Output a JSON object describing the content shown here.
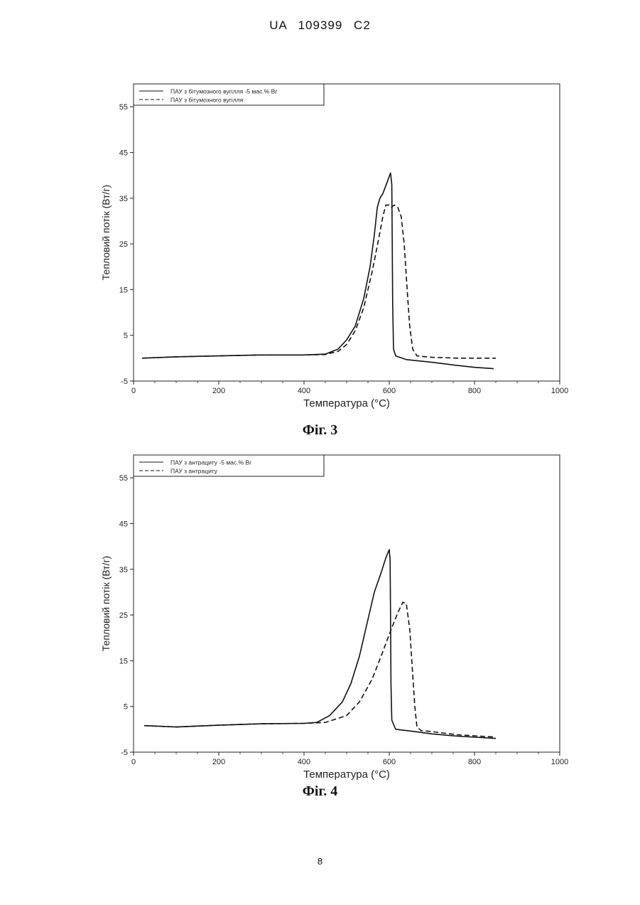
{
  "header": {
    "text": "UA  109399  C2"
  },
  "page_number": "8",
  "chart_data": [
    {
      "type": "line",
      "caption": "Фіг. 3",
      "xlabel": "Температура (°C)",
      "ylabel": "Тепловий потік (Вт/г)",
      "xlim": [
        0,
        1000
      ],
      "ylim": [
        -5,
        60
      ],
      "xticks": [
        0,
        200,
        400,
        600,
        800,
        1000
      ],
      "yticks": [
        -5,
        5,
        15,
        25,
        35,
        45,
        55
      ],
      "legend_position": "top-left",
      "series": [
        {
          "name": "ПАУ з бітумозного вугілля -5 мас.% Br",
          "style": "solid",
          "points": [
            [
              20,
              0
            ],
            [
              100,
              0.3
            ],
            [
              200,
              0.5
            ],
            [
              300,
              0.7
            ],
            [
              400,
              0.7
            ],
            [
              450,
              0.9
            ],
            [
              480,
              2
            ],
            [
              500,
              4
            ],
            [
              520,
              7
            ],
            [
              540,
              13
            ],
            [
              555,
              20
            ],
            [
              565,
              27
            ],
            [
              572,
              33
            ],
            [
              578,
              35
            ],
            [
              585,
              36
            ],
            [
              595,
              38.5
            ],
            [
              603,
              40.5
            ],
            [
              606,
              38
            ],
            [
              607,
              25
            ],
            [
              608,
              12
            ],
            [
              610,
              2
            ],
            [
              615,
              0.5
            ],
            [
              640,
              -0.3
            ],
            [
              700,
              -0.9
            ],
            [
              760,
              -1.6
            ],
            [
              800,
              -2.0
            ],
            [
              845,
              -2.3
            ]
          ]
        },
        {
          "name": "ПАУ з бітумозного вугілля",
          "style": "dashed",
          "points": [
            [
              20,
              0
            ],
            [
              100,
              0.3
            ],
            [
              200,
              0.5
            ],
            [
              300,
              0.7
            ],
            [
              400,
              0.7
            ],
            [
              450,
              0.8
            ],
            [
              480,
              1.5
            ],
            [
              500,
              3
            ],
            [
              520,
              6
            ],
            [
              540,
              11
            ],
            [
              560,
              19
            ],
            [
              575,
              26
            ],
            [
              585,
              31
            ],
            [
              592,
              33.5
            ],
            [
              600,
              33.5
            ],
            [
              605,
              33
            ],
            [
              612,
              33.5
            ],
            [
              620,
              33
            ],
            [
              628,
              31
            ],
            [
              635,
              25
            ],
            [
              642,
              15
            ],
            [
              648,
              7
            ],
            [
              655,
              2
            ],
            [
              665,
              0.5
            ],
            [
              700,
              0.2
            ],
            [
              760,
              0
            ],
            [
              850,
              0
            ]
          ]
        }
      ]
    },
    {
      "type": "line",
      "caption": "Фіг. 4",
      "xlabel": "Температура (°C)",
      "ylabel": "Тепловий потік (Вт/г)",
      "xlim": [
        0,
        1000
      ],
      "ylim": [
        -5,
        60
      ],
      "xticks": [
        0,
        200,
        400,
        600,
        800,
        1000
      ],
      "yticks": [
        -5,
        5,
        15,
        25,
        35,
        45,
        55
      ],
      "legend_position": "top-left",
      "series": [
        {
          "name": "ПАУ з антрациту -5 мас.% Br",
          "style": "solid",
          "points": [
            [
              25,
              0.8
            ],
            [
              100,
              0.5
            ],
            [
              200,
              0.9
            ],
            [
              300,
              1.2
            ],
            [
              400,
              1.3
            ],
            [
              430,
              1.5
            ],
            [
              460,
              3
            ],
            [
              490,
              6
            ],
            [
              510,
              10
            ],
            [
              530,
              16
            ],
            [
              550,
              24
            ],
            [
              565,
              30
            ],
            [
              580,
              34
            ],
            [
              592,
              37.5
            ],
            [
              600,
              39.3
            ],
            [
              602,
              37
            ],
            [
              603,
              25
            ],
            [
              604,
              10
            ],
            [
              606,
              2
            ],
            [
              615,
              0
            ],
            [
              660,
              -0.5
            ],
            [
              700,
              -1.0
            ],
            [
              760,
              -1.5
            ],
            [
              850,
              -2.0
            ]
          ]
        },
        {
          "name": "ПАУ з антрациту",
          "style": "dashed",
          "points": [
            [
              25,
              0.8
            ],
            [
              100,
              0.5
            ],
            [
              200,
              0.9
            ],
            [
              300,
              1.2
            ],
            [
              400,
              1.3
            ],
            [
              450,
              1.5
            ],
            [
              500,
              3
            ],
            [
              530,
              6
            ],
            [
              560,
              11
            ],
            [
              585,
              17
            ],
            [
              605,
              22
            ],
            [
              620,
              25.5
            ],
            [
              632,
              27.8
            ],
            [
              640,
              27.5
            ],
            [
              648,
              22
            ],
            [
              655,
              12
            ],
            [
              660,
              5
            ],
            [
              665,
              0.5
            ],
            [
              675,
              -0.3
            ],
            [
              700,
              -0.5
            ],
            [
              760,
              -1.2
            ],
            [
              850,
              -1.7
            ]
          ]
        }
      ]
    }
  ]
}
